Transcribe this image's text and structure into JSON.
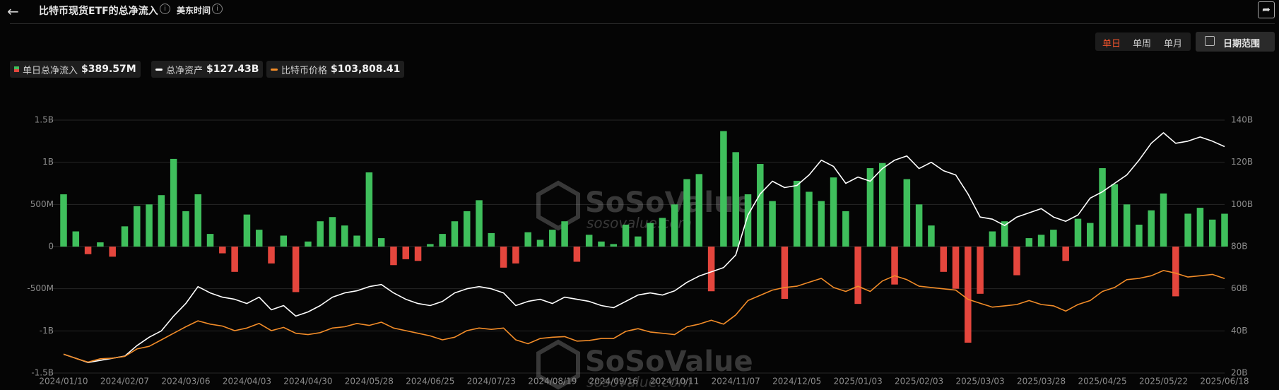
{
  "header": {
    "title": "比特币现货ETF的总净流入",
    "timezone": "美东时间"
  },
  "controls": {
    "periods": [
      "单日",
      "单周",
      "单月"
    ],
    "date_range": "日期范围"
  },
  "watermark": {
    "brand": "SoSoValue",
    "site": "sosovalue.com"
  },
  "chart_data": {
    "type": "bar",
    "categories": [
      "2024/01/10",
      null,
      null,
      null,
      null,
      "2024/02/07",
      null,
      null,
      null,
      null,
      "2024/03/06",
      null,
      null,
      null,
      null,
      "2024/04/03",
      null,
      null,
      null,
      null,
      "2024/04/30",
      null,
      null,
      null,
      null,
      "2024/05/28",
      null,
      null,
      null,
      null,
      "2024/06/25",
      null,
      null,
      null,
      null,
      "2024/07/23",
      null,
      null,
      null,
      null,
      "2024/08/19",
      null,
      null,
      null,
      null,
      "2024/09/16",
      null,
      null,
      null,
      null,
      "2024/10/11",
      null,
      null,
      null,
      null,
      "2024/11/07",
      null,
      null,
      null,
      null,
      "2024/12/05",
      null,
      null,
      null,
      null,
      "2025/01/03",
      null,
      null,
      null,
      null,
      "2025/02/03",
      null,
      null,
      null,
      null,
      "2025/03/03",
      null,
      null,
      null,
      null,
      "2025/03/28",
      null,
      null,
      null,
      null,
      "2025/04/25",
      null,
      null,
      null,
      null,
      "2025/05/22",
      null,
      null,
      null,
      null,
      "2025/06/18"
    ],
    "series": [
      {
        "name": "单日总净流入",
        "positive_color": "#3fbf5c",
        "negative_color": "#e4463d",
        "values": [
          620,
          180,
          -90,
          50,
          -120,
          240,
          480,
          500,
          610,
          1040,
          420,
          620,
          150,
          -80,
          -300,
          380,
          200,
          -200,
          130,
          -540,
          60,
          300,
          350,
          250,
          130,
          880,
          100,
          -220,
          -150,
          -170,
          30,
          150,
          300,
          420,
          550,
          160,
          -250,
          -200,
          170,
          80,
          200,
          300,
          -180,
          140,
          60,
          30,
          260,
          120,
          280,
          340,
          500,
          800,
          860,
          -530,
          1370,
          1120,
          620,
          980,
          540,
          -620,
          780,
          650,
          540,
          820,
          420,
          -680,
          930,
          990,
          -450,
          800,
          500,
          250,
          -300,
          -500,
          -1140,
          -560,
          180,
          300,
          -340,
          100,
          140,
          200,
          -170,
          330,
          280,
          930,
          740,
          500,
          260,
          430,
          630,
          -590,
          390,
          460,
          320,
          389.57
        ]
      },
      {
        "name": "总净资产",
        "color": "#ffffff",
        "axis": "y2",
        "values": [
          28.9,
          27,
          25,
          26,
          27,
          28,
          33,
          37,
          40,
          47,
          53,
          61,
          58,
          56,
          55,
          53,
          56,
          50,
          52,
          47,
          49,
          52,
          56,
          58,
          59,
          61,
          62,
          58,
          55,
          53,
          52,
          54,
          58,
          60,
          61,
          60,
          58,
          52,
          54,
          55,
          53,
          56,
          55,
          54,
          52,
          51,
          54,
          57,
          58,
          57,
          59,
          63,
          66,
          68,
          70,
          76,
          95,
          105,
          111,
          108,
          109,
          114,
          121,
          118,
          110,
          113,
          111,
          117,
          121,
          123,
          117,
          120,
          116,
          114,
          105,
          94,
          93,
          90,
          94,
          96,
          98,
          94,
          92,
          95,
          103,
          106,
          110,
          114,
          121,
          129,
          134,
          129,
          130,
          132,
          130,
          127.43
        ]
      },
      {
        "name": "比特币价格",
        "color": "#f28c28",
        "axis": "y3",
        "values": [
          46100,
          42800,
          40000,
          42500,
          43000,
          44300,
          50000,
          52000,
          57000,
          62000,
          67000,
          71500,
          69000,
          67500,
          64000,
          66000,
          69500,
          64000,
          66500,
          62000,
          61000,
          62500,
          66000,
          67000,
          69500,
          68000,
          70500,
          66000,
          64000,
          62000,
          60000,
          57000,
          59000,
          64000,
          66000,
          65000,
          66000,
          57000,
          54000,
          58000,
          59000,
          59500,
          56000,
          56500,
          58000,
          58000,
          63500,
          65500,
          63000,
          62000,
          61000,
          67000,
          69000,
          72000,
          69000,
          76000,
          87000,
          91000,
          95000,
          97000,
          98000,
          101000,
          104000,
          97000,
          94000,
          98000,
          94000,
          102000,
          106000,
          103000,
          98000,
          97000,
          96000,
          95000,
          88000,
          85000,
          82000,
          83000,
          84000,
          87000,
          84000,
          83000,
          79000,
          84000,
          87000,
          94000,
          97000,
          103000,
          104000,
          106000,
          110000,
          108000,
          105000,
          106000,
          107000,
          103808.41
        ]
      }
    ],
    "legend_values": [
      "$389.57M",
      "$127.43B",
      "$103,808.41"
    ],
    "ylim": [
      -1500,
      1500
    ],
    "yticks": [
      {
        "value": -1500,
        "label": "-1.5B"
      },
      {
        "value": -1000,
        "label": "-1B"
      },
      {
        "value": -500,
        "label": "-500M"
      },
      0,
      {
        "value": 500,
        "label": "500M"
      },
      {
        "value": 1000,
        "label": "1B"
      },
      {
        "value": 1500,
        "label": "1.5B"
      }
    ],
    "y2lim": [
      20,
      140
    ],
    "y2ticks": [
      {
        "value": 20,
        "label": "20B"
      },
      {
        "value": 40,
        "label": "40B"
      },
      {
        "value": 60,
        "label": "60B"
      },
      {
        "value": 80,
        "label": "80B"
      },
      {
        "value": 100,
        "label": "100B"
      },
      {
        "value": 120,
        "label": "120B"
      },
      {
        "value": 140,
        "label": "140B"
      }
    ],
    "y3lim": [
      31600,
      225000
    ],
    "grid": true
  }
}
